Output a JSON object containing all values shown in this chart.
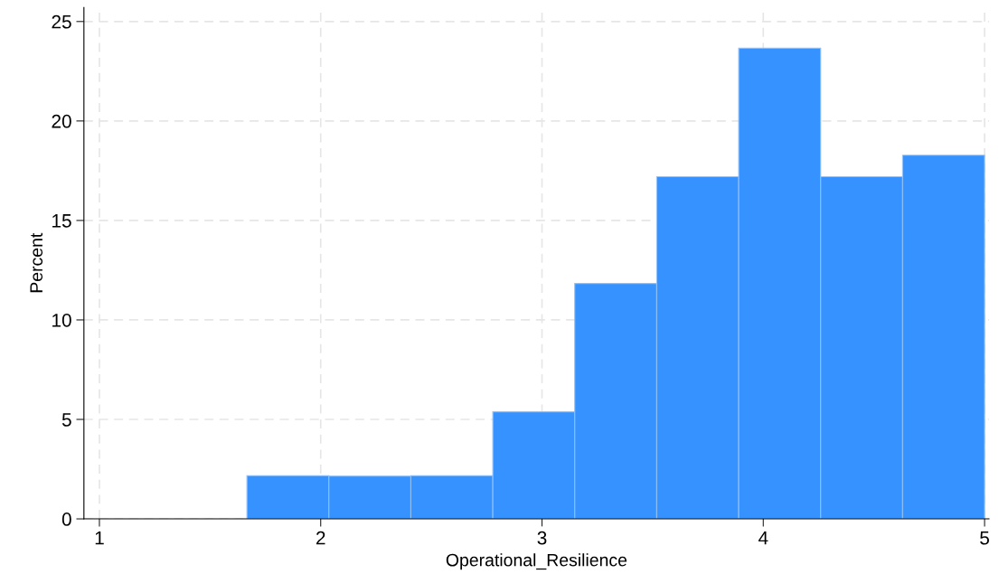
{
  "chart_data": {
    "type": "histogram",
    "xlabel": "Operational_Resilience",
    "ylabel": "Percent",
    "bins": [
      1.6667,
      2.037,
      2.4074,
      2.7778,
      3.1481,
      3.5185,
      3.8889,
      4.2593,
      4.6296,
      5.0
    ],
    "values": [
      2.17,
      2.15,
      2.17,
      5.38,
      11.83,
      17.2,
      23.66,
      17.2,
      18.28
    ],
    "color": "#3592fe",
    "xlim": [
      0.93,
      5.02
    ],
    "xticks": [
      1,
      2,
      3,
      4,
      5
    ],
    "ylim": [
      0,
      25.7
    ],
    "yticks": [
      0,
      5,
      10,
      15,
      20,
      25
    ],
    "grid": true,
    "line_style": "dashed"
  }
}
